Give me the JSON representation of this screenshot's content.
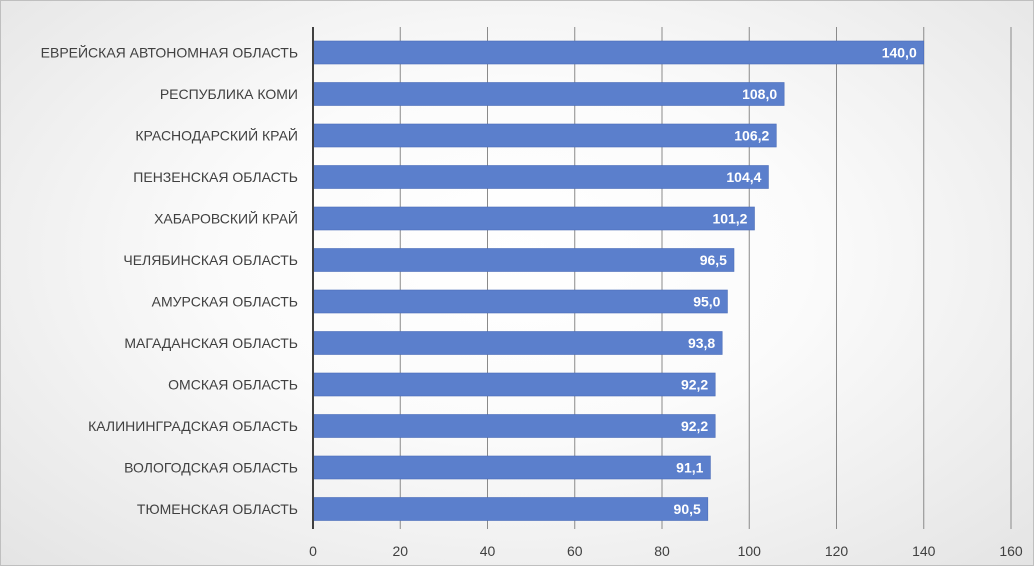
{
  "chart_data": {
    "type": "bar",
    "orientation": "horizontal",
    "title": "",
    "xlabel": "",
    "ylabel": "",
    "categories": [
      "ЕВРЕЙСКАЯ АВТОНОМНАЯ ОБЛАСТЬ",
      "РЕСПУБЛИКА КОМИ",
      "КРАСНОДАРСКИЙ КРАЙ",
      "ПЕНЗЕНСКАЯ ОБЛАСТЬ",
      "ХАБАРОВСКИЙ КРАЙ",
      "ЧЕЛЯБИНСКАЯ ОБЛАСТЬ",
      "АМУРСКАЯ ОБЛАСТЬ",
      "МАГАДАНСКАЯ ОБЛАСТЬ",
      "ОМСКАЯ ОБЛАСТЬ",
      "КАЛИНИНГРАДСКАЯ ОБЛАСТЬ",
      "ВОЛОГОДСКАЯ ОБЛАСТЬ",
      "ТЮМЕНСКАЯ ОБЛАСТЬ"
    ],
    "values": [
      140.0,
      108.0,
      106.2,
      104.4,
      101.2,
      96.5,
      95.0,
      93.8,
      92.2,
      92.2,
      91.1,
      90.5
    ],
    "value_labels": [
      "140,0",
      "108,0",
      "106,2",
      "104,4",
      "101,2",
      "96,5",
      "95,0",
      "93,8",
      "92,2",
      "92,2",
      "91,1",
      "90,5"
    ],
    "xlim": [
      0,
      160
    ],
    "x_ticks": [
      0,
      20,
      40,
      60,
      80,
      100,
      120,
      140,
      160
    ],
    "x_tick_labels": [
      "0",
      "20",
      "40",
      "60",
      "80",
      "100",
      "120",
      "140",
      "160"
    ],
    "grid": true,
    "legend": "none",
    "colors": {
      "bar": "#5b7fcc",
      "bar_edge": "#4a6cb8",
      "grid": "#8a8a8a",
      "axis": "#404040",
      "text": "#404040",
      "value_text": "#ffffff"
    }
  }
}
